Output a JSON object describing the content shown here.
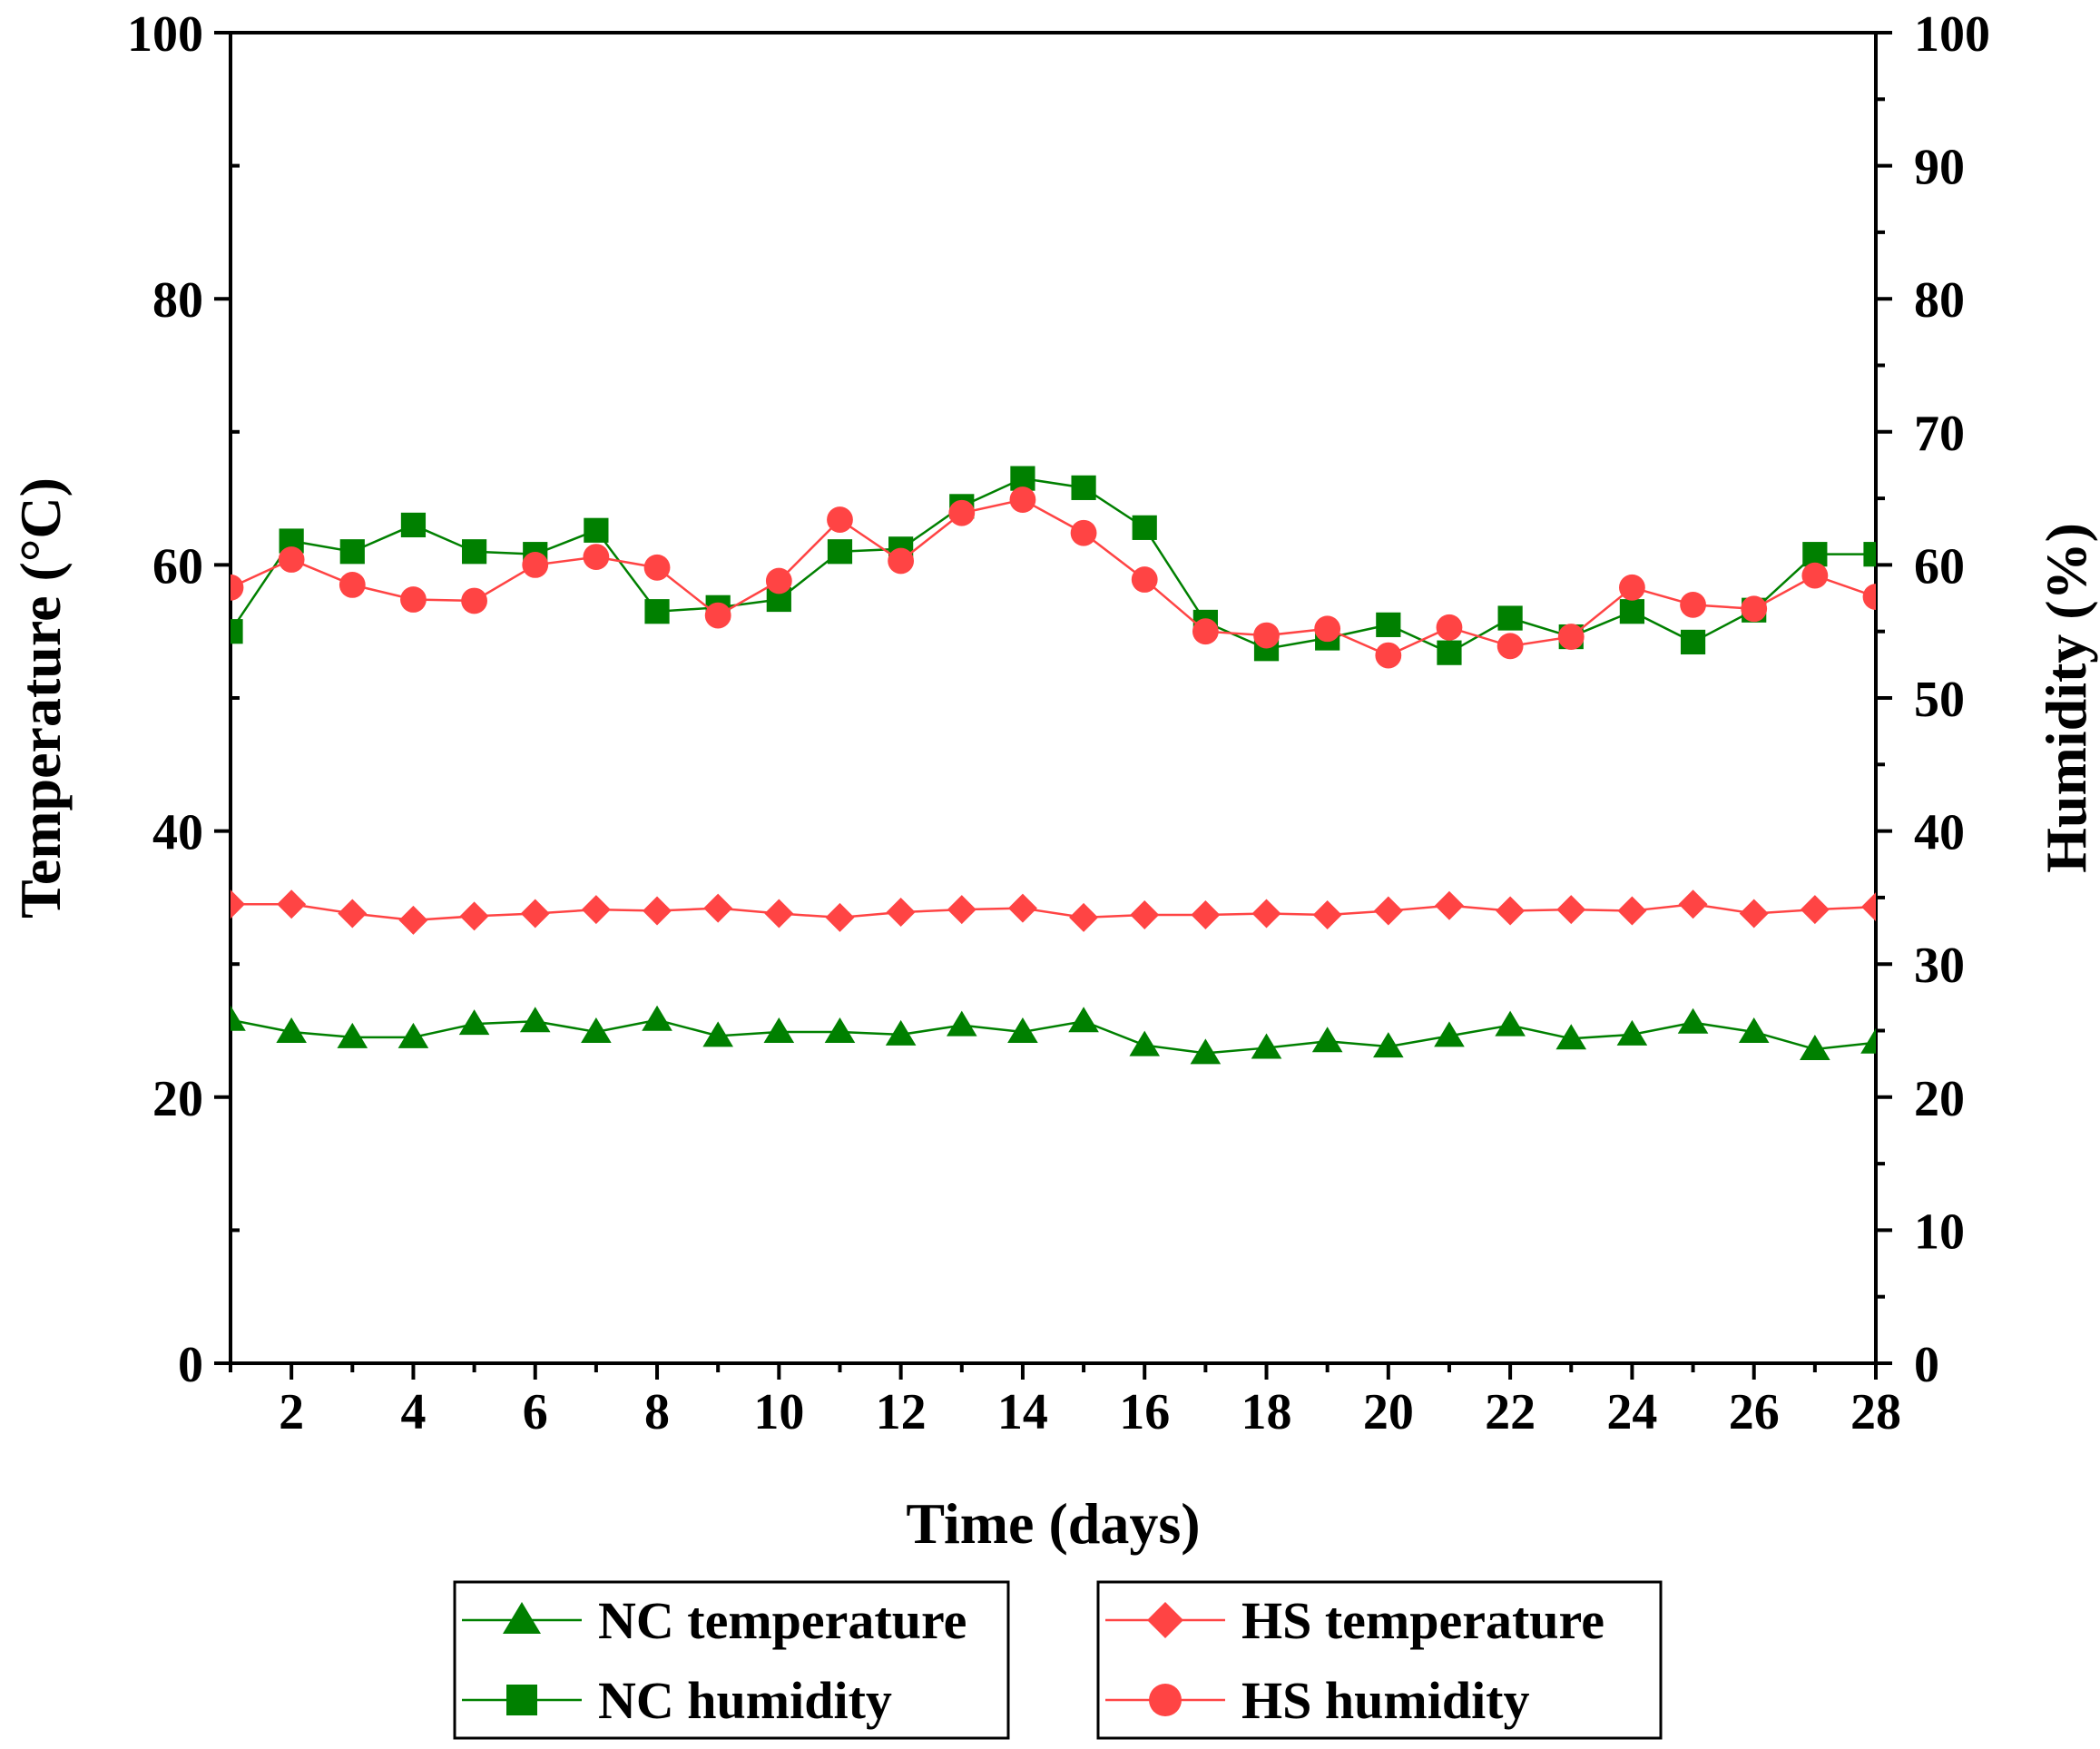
{
  "chart_data": {
    "type": "line",
    "xlabel": "Time (days)",
    "ylabel_left": "Temperature (°C)",
    "ylabel_right": "Humidity (%)",
    "xlim": [
      1,
      28
    ],
    "ylim_left": [
      0,
      100
    ],
    "ylim_right": [
      0,
      100
    ],
    "x_ticks": [
      2,
      4,
      6,
      8,
      10,
      12,
      14,
      16,
      18,
      20,
      22,
      24,
      26,
      28
    ],
    "y_ticks_left": [
      0,
      20,
      40,
      60,
      80,
      100
    ],
    "y_ticks_right": [
      0,
      10,
      20,
      30,
      40,
      50,
      60,
      70,
      80,
      90,
      100
    ],
    "x": [
      1,
      2,
      3,
      4,
      5,
      6,
      7,
      8,
      9,
      10,
      11,
      12,
      13,
      14,
      15,
      16,
      17,
      18,
      19,
      20,
      21,
      22,
      23,
      24,
      25,
      26,
      27,
      28
    ],
    "series": [
      {
        "name": "NC temperature",
        "axis": "left",
        "color": "#008000",
        "marker": "triangle",
        "values": [
          25.8,
          24.9,
          24.5,
          24.5,
          25.5,
          25.7,
          24.9,
          25.8,
          24.6,
          24.9,
          24.9,
          24.7,
          25.4,
          24.9,
          25.7,
          23.9,
          23.3,
          23.7,
          24.2,
          23.8,
          24.6,
          25.4,
          24.4,
          24.7,
          25.6,
          24.9,
          23.6,
          24.1
        ]
      },
      {
        "name": "NC humidity",
        "axis": "right",
        "color": "#008000",
        "marker": "square",
        "values": [
          55.0,
          61.8,
          61.0,
          63.0,
          61.0,
          60.8,
          62.6,
          56.5,
          56.8,
          57.4,
          61.0,
          61.2,
          64.4,
          66.5,
          65.8,
          62.8,
          55.7,
          53.7,
          54.5,
          55.5,
          53.4,
          56.0,
          54.6,
          56.5,
          54.2,
          56.6,
          60.8,
          60.8
        ]
      },
      {
        "name": "HS temperature",
        "axis": "left",
        "color": "#FF4444",
        "marker": "diamond",
        "values": [
          34.5,
          34.5,
          33.8,
          33.3,
          33.6,
          33.8,
          34.1,
          34.0,
          34.2,
          33.8,
          33.5,
          33.9,
          34.1,
          34.2,
          33.5,
          33.7,
          33.7,
          33.8,
          33.7,
          34.0,
          34.4,
          34.0,
          34.1,
          34.0,
          34.5,
          33.8,
          34.1,
          34.3
        ]
      },
      {
        "name": "HS humidity",
        "axis": "right",
        "color": "#FF4444",
        "marker": "circle",
        "values": [
          58.3,
          60.4,
          58.5,
          57.4,
          57.3,
          60.0,
          60.6,
          59.8,
          56.2,
          58.8,
          63.4,
          60.3,
          63.9,
          64.9,
          62.4,
          58.9,
          55.0,
          54.7,
          55.2,
          53.2,
          55.3,
          53.9,
          54.6,
          58.3,
          57.0,
          56.7,
          59.2,
          57.6
        ]
      }
    ]
  }
}
